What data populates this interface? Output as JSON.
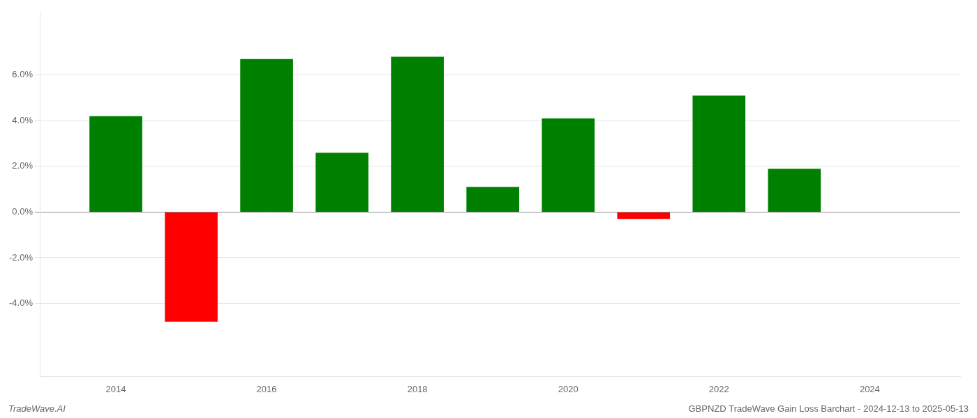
{
  "chart_data": {
    "type": "bar",
    "x": [
      2014,
      2015,
      2016,
      2017,
      2018,
      2019,
      2020,
      2021,
      2022,
      2023
    ],
    "values": [
      0.042,
      -0.048,
      0.067,
      0.026,
      0.068,
      0.011,
      0.041,
      -0.003,
      0.051,
      0.019
    ],
    "colors": [
      "#008000",
      "#ff0000",
      "#008000",
      "#008000",
      "#008000",
      "#008000",
      "#008000",
      "#ff0000",
      "#008000",
      "#008000"
    ],
    "xlim": [
      2013.0,
      2025.2
    ],
    "ylim": [
      -0.072,
      0.088
    ],
    "xticks": [
      2014,
      2016,
      2018,
      2020,
      2022,
      2024
    ],
    "yticks": [
      {
        "value": -0.04,
        "label": "-4.0%"
      },
      {
        "value": -0.02,
        "label": "-2.0%"
      },
      {
        "value": 0.0,
        "label": "0.0%"
      },
      {
        "value": 0.02,
        "label": "2.0%"
      },
      {
        "value": 0.04,
        "label": "4.0%"
      },
      {
        "value": 0.06,
        "label": "6.0%"
      }
    ],
    "grid": true,
    "annotations": [
      "TradeWave.AI",
      "GBPNZD TradeWave Gain Loss Barchart - 2024-12-13 to 2025-05-13"
    ]
  }
}
